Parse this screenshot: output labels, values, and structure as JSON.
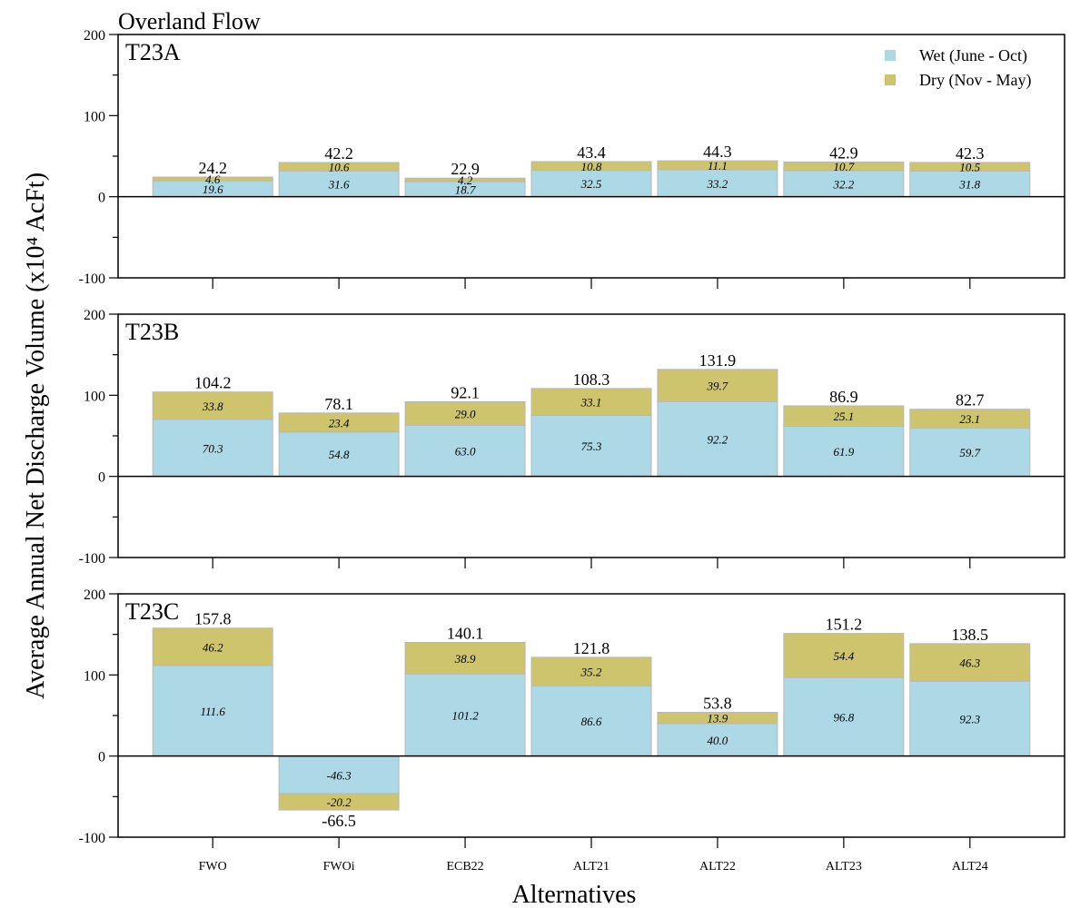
{
  "figure": {
    "title": "Overland Flow",
    "ylabel": "Average Annual Net Discharge Volume (x10⁴ AcFt)",
    "xlabel": "Alternatives"
  },
  "legend": {
    "placement": "top-right",
    "items": [
      {
        "label": "Wet (June - Oct)",
        "color": "#add8e6"
      },
      {
        "label": "Dry (Nov - May)",
        "color": "#cdc46d"
      }
    ]
  },
  "chart_data": [
    {
      "type": "bar",
      "stacked": true,
      "panel": "T23A",
      "categories": [
        "FWO",
        "FWOi",
        "ECB22",
        "ALT21",
        "ALT22",
        "ALT23",
        "ALT24"
      ],
      "series": [
        {
          "name": "Wet (June - Oct)",
          "color": "#add8e6",
          "values": [
            19.6,
            31.6,
            18.7,
            32.5,
            33.2,
            32.2,
            31.8
          ]
        },
        {
          "name": "Dry (Nov - May)",
          "color": "#cdc46d",
          "values": [
            4.6,
            10.6,
            4.2,
            10.8,
            11.1,
            10.7,
            10.5
          ]
        }
      ],
      "totals": [
        24.2,
        42.2,
        22.9,
        43.4,
        44.3,
        42.9,
        42.3
      ],
      "ylim": [
        -100,
        200
      ],
      "yticks": [
        -100,
        0,
        100,
        200
      ]
    },
    {
      "type": "bar",
      "stacked": true,
      "panel": "T23B",
      "categories": [
        "FWO",
        "FWOi",
        "ECB22",
        "ALT21",
        "ALT22",
        "ALT23",
        "ALT24"
      ],
      "series": [
        {
          "name": "Wet (June - Oct)",
          "color": "#add8e6",
          "values": [
            70.3,
            54.8,
            63.0,
            75.3,
            92.2,
            61.9,
            59.7
          ]
        },
        {
          "name": "Dry (Nov - May)",
          "color": "#cdc46d",
          "values": [
            33.8,
            23.4,
            29.0,
            33.1,
            39.7,
            25.1,
            23.1
          ]
        }
      ],
      "totals": [
        104.2,
        78.1,
        92.1,
        108.3,
        131.9,
        86.9,
        82.7
      ],
      "ylim": [
        -100,
        200
      ],
      "yticks": [
        -100,
        0,
        100,
        200
      ]
    },
    {
      "type": "bar",
      "stacked": true,
      "panel": "T23C",
      "categories": [
        "FWO",
        "FWOi",
        "ECB22",
        "ALT21",
        "ALT22",
        "ALT23",
        "ALT24"
      ],
      "series": [
        {
          "name": "Wet (June - Oct)",
          "color": "#add8e6",
          "values": [
            111.6,
            -46.3,
            101.2,
            86.6,
            40.0,
            96.8,
            92.3
          ]
        },
        {
          "name": "Dry (Nov - May)",
          "color": "#cdc46d",
          "values": [
            46.2,
            -20.2,
            38.9,
            35.2,
            13.9,
            54.4,
            46.3
          ]
        }
      ],
      "totals": [
        157.8,
        -66.5,
        140.1,
        121.8,
        53.8,
        151.2,
        138.5
      ],
      "ylim": [
        -100,
        200
      ],
      "yticks": [
        -100,
        0,
        100,
        200
      ]
    }
  ]
}
